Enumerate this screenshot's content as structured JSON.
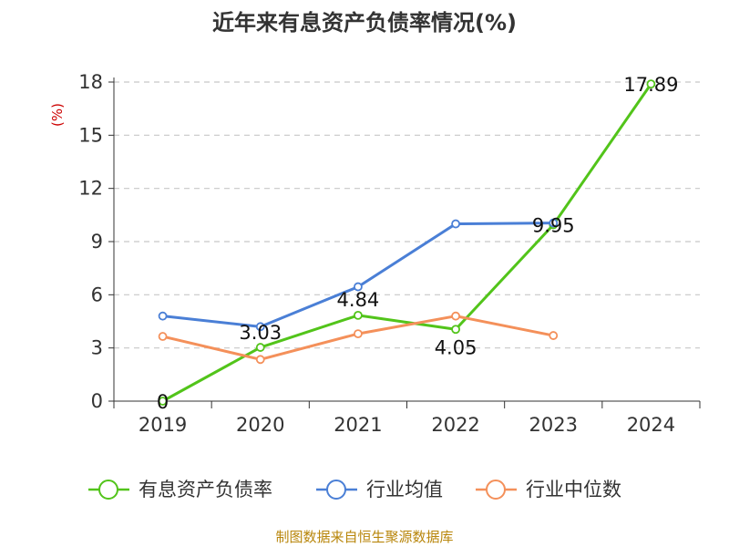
{
  "chart_data": {
    "type": "line",
    "title": "近年来有息资产负债率情况(%)",
    "unit_label": "(%)",
    "categories": [
      "2019",
      "2020",
      "2021",
      "2022",
      "2023",
      "2024"
    ],
    "ylim": [
      0,
      18
    ],
    "yticks": [
      0,
      3,
      6,
      9,
      12,
      15,
      18
    ],
    "grid": "horizontal-dashed",
    "legend_position": "bottom",
    "series": [
      {
        "name": "有息资产负债率",
        "color": "#52c41a",
        "values": [
          0,
          3.03,
          4.84,
          4.05,
          9.95,
          17.89
        ],
        "labels": [
          "0",
          "3.03",
          "4.84",
          "4.05",
          "9.95",
          "17.89"
        ]
      },
      {
        "name": "行业均值",
        "color": "#4a7fd6",
        "values": [
          4.8,
          4.2,
          6.45,
          10.0,
          10.05,
          null
        ]
      },
      {
        "name": "行业中位数",
        "color": "#f4905a",
        "values": [
          3.65,
          2.35,
          3.8,
          4.8,
          3.7,
          null
        ]
      }
    ]
  },
  "source": "制图数据来自恒生聚源数据库"
}
